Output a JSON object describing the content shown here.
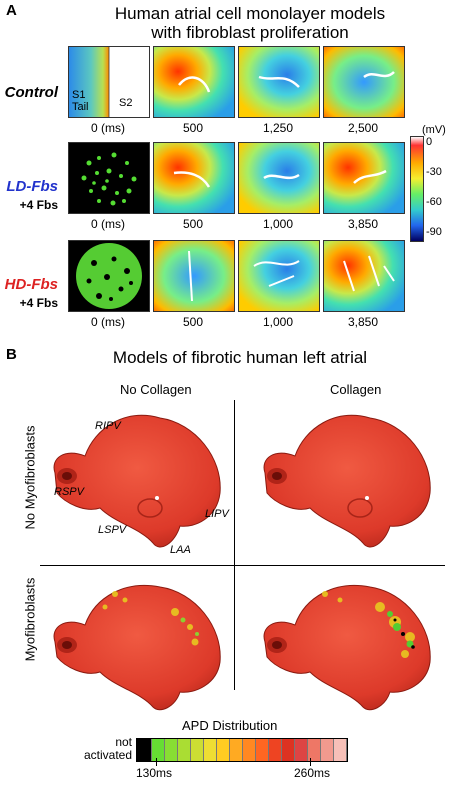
{
  "panel_a": {
    "letter": "A",
    "title_line1": "Human atrial cell monolayer models",
    "title_line2": "with fibroblast proliferation",
    "rows": [
      {
        "label": "Control",
        "sub": "",
        "label_color": "#000000",
        "s1_label": "S1",
        "tail_label": "Tail",
        "s2_label": "S2",
        "times": [
          "0 (ms)",
          "500",
          "1,250",
          "2,500"
        ]
      },
      {
        "label": "LD-Fbs",
        "sub": "+4 Fbs",
        "label_color": "#2233cc",
        "times": [
          "0 (ms)",
          "500",
          "1,000",
          "3,850"
        ]
      },
      {
        "label": "HD-Fbs",
        "sub": "+4 Fbs",
        "label_color": "#dd2222",
        "times": [
          "0 (ms)",
          "500",
          "1,000",
          "3,850"
        ]
      }
    ],
    "colorbar": {
      "unit": "(mV)",
      "ticks": [
        "0",
        "-30",
        "-60",
        "-90"
      ]
    }
  },
  "panel_b": {
    "letter": "B",
    "title": "Models of fibrotic human left atrial",
    "col_labels": [
      "No Collagen",
      "Collagen"
    ],
    "row_labels": [
      "No Myofibroblasts",
      "Myofibroblasts"
    ],
    "anatomy": {
      "ripv": "RIPV",
      "rspv": "RSPV",
      "lspv": "LSPV",
      "lipv": "LIPV",
      "laa": "LAA"
    },
    "legend": {
      "title": "APD Distribution",
      "not_activated": "not activated",
      "min": "130ms",
      "max": "260ms",
      "swatch_colors": [
        "#000000",
        "#66dd33",
        "#88dd33",
        "#aadd33",
        "#ccdd33",
        "#eedd33",
        "#ffcc22",
        "#ffaa22",
        "#ff8822",
        "#ff6622",
        "#ee4422",
        "#dd3322",
        "#dd4444",
        "#ee7766",
        "#f29a8e",
        "#f7c0b8"
      ]
    }
  }
}
